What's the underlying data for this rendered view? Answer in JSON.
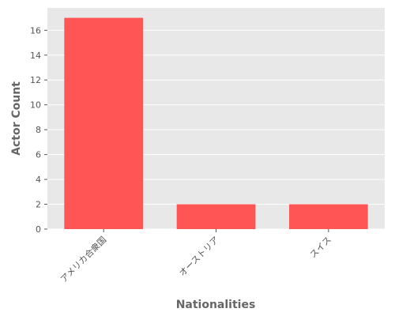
{
  "chart_data": {
    "type": "bar",
    "categories": [
      "アメリカ合衆国",
      "オーストリア",
      "スイス"
    ],
    "values": [
      17,
      2,
      2
    ],
    "xlabel": "Nationalities",
    "ylabel": "Actor Count",
    "ylim": [
      0,
      17.8
    ],
    "yticks": [
      0,
      2,
      4,
      6,
      8,
      10,
      12,
      14,
      16
    ],
    "grid": true,
    "colors": {
      "bar": "#ff5555",
      "plot_background": "#e8e8e8",
      "grid": "#ffffff"
    }
  }
}
